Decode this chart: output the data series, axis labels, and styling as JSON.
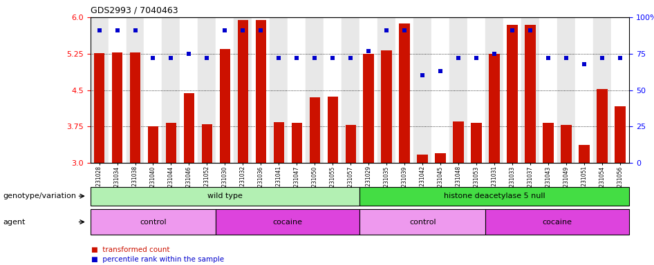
{
  "title": "GDS2993 / 7040463",
  "samples": [
    "GSM231028",
    "GSM231034",
    "GSM231038",
    "GSM231040",
    "GSM231044",
    "GSM231046",
    "GSM231052",
    "GSM231030",
    "GSM231032",
    "GSM231036",
    "GSM231041",
    "GSM231047",
    "GSM231050",
    "GSM231055",
    "GSM231057",
    "GSM231029",
    "GSM231035",
    "GSM231039",
    "GSM231042",
    "GSM231045",
    "GSM231048",
    "GSM231053",
    "GSM231031",
    "GSM231033",
    "GSM231037",
    "GSM231043",
    "GSM231049",
    "GSM231051",
    "GSM231054",
    "GSM231056"
  ],
  "bar_values": [
    5.26,
    5.28,
    5.27,
    3.75,
    3.82,
    4.43,
    3.8,
    5.35,
    5.94,
    5.94,
    3.84,
    3.82,
    4.35,
    4.37,
    3.78,
    5.25,
    5.32,
    5.87,
    3.17,
    3.2,
    3.85,
    3.83,
    5.25,
    5.85,
    5.85,
    3.82,
    3.78,
    3.37,
    4.52,
    4.17
  ],
  "blue_values": [
    91,
    91,
    91,
    72,
    72,
    75,
    72,
    91,
    91,
    91,
    72,
    72,
    72,
    72,
    72,
    77,
    91,
    91,
    60,
    63,
    72,
    72,
    75,
    91,
    91,
    72,
    72,
    68,
    72,
    72
  ],
  "ylim_left": [
    3.0,
    6.0
  ],
  "ylim_right": [
    0,
    100
  ],
  "yticks_left": [
    3.0,
    3.75,
    4.5,
    5.25,
    6.0
  ],
  "yticks_right": [
    0,
    25,
    50,
    75,
    100
  ],
  "bar_color": "#cc1100",
  "dot_color": "#0000cc",
  "col_bg_even": "#e8e8e8",
  "col_bg_odd": "#ffffff",
  "groups": [
    {
      "label": "wild type",
      "start": 0,
      "end": 15,
      "color": "#b3f0b3"
    },
    {
      "label": "histone deacetylase 5 null",
      "start": 15,
      "end": 30,
      "color": "#44dd44"
    }
  ],
  "agents": [
    {
      "label": "control",
      "start": 0,
      "end": 7,
      "color": "#ee99ee"
    },
    {
      "label": "cocaine",
      "start": 7,
      "end": 15,
      "color": "#dd44dd"
    },
    {
      "label": "control",
      "start": 15,
      "end": 22,
      "color": "#ee99ee"
    },
    {
      "label": "cocaine",
      "start": 22,
      "end": 30,
      "color": "#dd44dd"
    }
  ],
  "legend_items": [
    {
      "label": "transformed count",
      "color": "#cc1100"
    },
    {
      "label": "percentile rank within the sample",
      "color": "#0000cc"
    }
  ],
  "genotype_label": "genotype/variation",
  "agent_label": "agent"
}
